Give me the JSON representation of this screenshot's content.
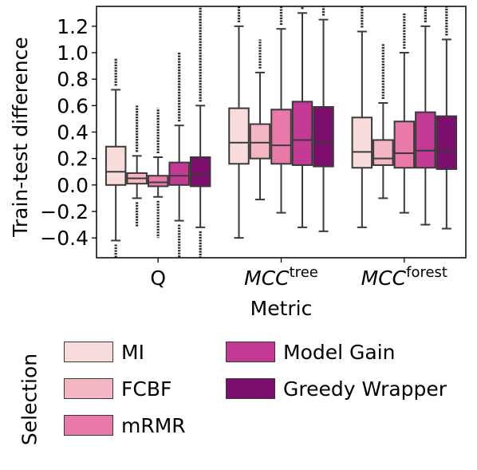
{
  "chart_data": {
    "type": "box",
    "ylabel": "Train-test difference",
    "xlabel": "Metric",
    "ylim": [
      -0.55,
      1.35
    ],
    "yticks": [
      "1.2",
      "1.0",
      "0.8",
      "0.6",
      "0.4",
      "0.2",
      "0.0",
      "−0.2",
      "−0.4"
    ],
    "ytick_values": [
      1.2,
      1.0,
      0.8,
      0.6,
      0.4,
      0.2,
      0.0,
      -0.2,
      -0.4
    ],
    "categories": [
      {
        "label": "Q",
        "sup": ""
      },
      {
        "label": "MCC",
        "sup": "tree"
      },
      {
        "label": "MCC",
        "sup": "forest"
      }
    ],
    "legend": {
      "title": "Selection",
      "entries": [
        "MI",
        "FCBF",
        "mRMR",
        "Model Gain",
        "Greedy Wrapper"
      ]
    },
    "colors": [
      "#f8dcdc",
      "#f4b6c2",
      "#e879a8",
      "#c23a94",
      "#7d0e6e"
    ],
    "series": [
      {
        "name": "MI",
        "boxes": [
          {
            "whislo": -0.42,
            "q1": 0.0,
            "med": 0.1,
            "q3": 0.29,
            "whishi": 0.72,
            "fliers_lo": -0.55,
            "fliers_hi": 0.96
          },
          {
            "whislo": -0.4,
            "q1": 0.16,
            "med": 0.32,
            "q3": 0.58,
            "whishi": 1.2,
            "fliers_lo": null,
            "fliers_hi": 1.35
          },
          {
            "whislo": -0.32,
            "q1": 0.13,
            "med": 0.25,
            "q3": 0.51,
            "whishi": 1.16,
            "fliers_lo": null,
            "fliers_hi": 1.35
          }
        ]
      },
      {
        "name": "FCBF",
        "boxes": [
          {
            "whislo": -0.1,
            "q1": 0.01,
            "med": 0.05,
            "q3": 0.09,
            "whishi": 0.22,
            "fliers_lo": -0.32,
            "fliers_hi": 0.6
          },
          {
            "whislo": -0.11,
            "q1": 0.2,
            "med": 0.32,
            "q3": 0.46,
            "whishi": 0.85,
            "fliers_lo": null,
            "fliers_hi": 1.1
          },
          {
            "whislo": -0.1,
            "q1": 0.15,
            "med": 0.2,
            "q3": 0.34,
            "whishi": 0.62,
            "fliers_lo": null,
            "fliers_hi": 1.07
          }
        ]
      },
      {
        "name": "mRMR",
        "boxes": [
          {
            "whislo": -0.09,
            "q1": -0.01,
            "med": 0.02,
            "q3": 0.07,
            "whishi": 0.21,
            "fliers_lo": -0.4,
            "fliers_hi": 0.58
          },
          {
            "whislo": -0.21,
            "q1": 0.16,
            "med": 0.3,
            "q3": 0.57,
            "whishi": 1.18,
            "fliers_lo": null,
            "fliers_hi": 1.35
          },
          {
            "whislo": -0.21,
            "q1": 0.13,
            "med": 0.24,
            "q3": 0.48,
            "whishi": 1.0,
            "fliers_lo": null,
            "fliers_hi": 1.3
          }
        ]
      },
      {
        "name": "Model Gain",
        "boxes": [
          {
            "whislo": -0.27,
            "q1": 0.0,
            "med": 0.07,
            "q3": 0.17,
            "whishi": 0.45,
            "fliers_lo": -0.55,
            "fliers_hi": 1.0
          },
          {
            "whislo": -0.32,
            "q1": 0.15,
            "med": 0.34,
            "q3": 0.63,
            "whishi": 1.3,
            "fliers_lo": null,
            "fliers_hi": 1.35
          },
          {
            "whislo": -0.3,
            "q1": 0.13,
            "med": 0.26,
            "q3": 0.55,
            "whishi": 1.2,
            "fliers_lo": null,
            "fliers_hi": 1.35
          }
        ]
      },
      {
        "name": "Greedy Wrapper",
        "boxes": [
          {
            "whislo": -0.32,
            "q1": -0.01,
            "med": 0.08,
            "q3": 0.21,
            "whishi": 0.6,
            "fliers_lo": -0.55,
            "fliers_hi": 1.35
          },
          {
            "whislo": -0.35,
            "q1": 0.14,
            "med": 0.32,
            "q3": 0.59,
            "whishi": 1.25,
            "fliers_lo": null,
            "fliers_hi": 1.35
          },
          {
            "whislo": -0.33,
            "q1": 0.12,
            "med": 0.26,
            "q3": 0.52,
            "whishi": 1.1,
            "fliers_lo": null,
            "fliers_hi": 1.35
          }
        ]
      }
    ]
  }
}
